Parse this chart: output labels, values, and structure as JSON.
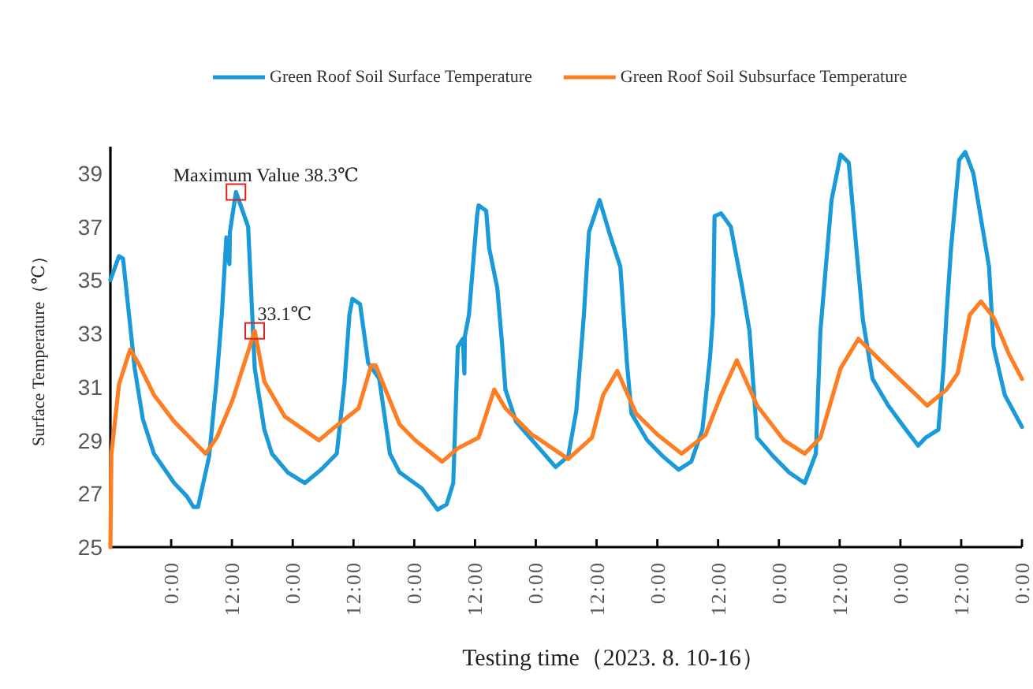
{
  "chart_data": {
    "type": "line",
    "xlabel": "Testing time（2023. 8. 10-16）",
    "ylabel": "Surface Temperature（℃）",
    "legend": "top",
    "xlim": [
      "2023-08-09T12:00",
      "2023-08-17T00:00"
    ],
    "ylim": [
      25,
      40
    ],
    "xticks": [
      {
        "value": "2023-08-10T00:00",
        "label": "0:00"
      },
      {
        "value": "2023-08-10T12:00",
        "label": "12:00"
      },
      {
        "value": "2023-08-11T00:00",
        "label": "0:00"
      },
      {
        "value": "2023-08-11T12:00",
        "label": "12:00"
      },
      {
        "value": "2023-08-12T00:00",
        "label": "0:00"
      },
      {
        "value": "2023-08-12T12:00",
        "label": "12:00"
      },
      {
        "value": "2023-08-13T00:00",
        "label": "0:00"
      },
      {
        "value": "2023-08-13T12:00",
        "label": "12:00"
      },
      {
        "value": "2023-08-14T00:00",
        "label": "0:00"
      },
      {
        "value": "2023-08-14T12:00",
        "label": "12:00"
      },
      {
        "value": "2023-08-15T00:00",
        "label": "0:00"
      },
      {
        "value": "2023-08-15T12:00",
        "label": "12:00"
      },
      {
        "value": "2023-08-16T00:00",
        "label": "0:00"
      },
      {
        "value": "2023-08-16T12:00",
        "label": "12:00"
      },
      {
        "value": "2023-08-17T00:00",
        "label": "0:00"
      }
    ],
    "yticks": [
      25,
      27,
      29,
      31,
      33,
      35,
      37,
      39
    ],
    "series": [
      {
        "name": "Green Roof Soil Surface Temperature",
        "color": "#1a9ad6",
        "x": [
          "2023-08-09T12:00",
          "2023-08-09T13:42",
          "2023-08-09T14:30",
          "2023-08-09T16:48",
          "2023-08-09T18:24",
          "2023-08-09T20:36",
          "2023-08-10T00:36",
          "2023-08-10T03:06",
          "2023-08-10T04:24",
          "2023-08-10T05:18",
          "2023-08-10T07:30",
          "2023-08-10T09:00",
          "2023-08-10T10:00",
          "2023-08-10T10:54",
          "2023-08-10T11:30",
          "2023-08-10T11:36",
          "2023-08-10T12:48",
          "2023-08-10T15:12",
          "2023-08-10T16:30",
          "2023-08-10T18:24",
          "2023-08-10T19:54",
          "2023-08-10T23:00",
          "2023-08-11T02:24",
          "2023-08-11T05:36",
          "2023-08-11T08:42",
          "2023-08-11T10:12",
          "2023-08-11T11:12",
          "2023-08-11T11:48",
          "2023-08-11T13:18",
          "2023-08-11T14:54",
          "2023-08-11T17:06",
          "2023-08-11T19:12",
          "2023-08-11T21:06",
          "2023-08-12T01:30",
          "2023-08-12T04:36",
          "2023-08-12T06:24",
          "2023-08-12T07:42",
          "2023-08-12T08:36",
          "2023-08-12T09:36",
          "2023-08-12T09:54",
          "2023-08-12T10:00",
          "2023-08-12T10:48",
          "2023-08-12T12:24",
          "2023-08-12T12:42",
          "2023-08-12T14:12",
          "2023-08-12T14:48",
          "2023-08-12T16:24",
          "2023-08-12T17:18",
          "2023-08-12T18:00",
          "2023-08-12T20:06",
          "2023-08-12T23:18",
          "2023-08-13T03:54",
          "2023-08-13T06:24",
          "2023-08-13T08:00",
          "2023-08-13T09:30",
          "2023-08-13T10:30",
          "2023-08-13T12:36",
          "2023-08-13T14:48",
          "2023-08-13T16:42",
          "2023-08-13T18:00",
          "2023-08-13T18:54",
          "2023-08-13T22:00",
          "2023-08-14T01:06",
          "2023-08-14T04:12",
          "2023-08-14T06:42",
          "2023-08-14T08:54",
          "2023-08-14T10:24",
          "2023-08-14T11:00",
          "2023-08-14T11:18",
          "2023-08-14T12:36",
          "2023-08-14T14:30",
          "2023-08-14T16:36",
          "2023-08-14T18:12",
          "2023-08-14T19:42",
          "2023-08-14T22:54",
          "2023-08-15T02:00",
          "2023-08-15T05:06",
          "2023-08-15T07:18",
          "2023-08-15T08:12",
          "2023-08-15T10:24",
          "2023-08-15T12:12",
          "2023-08-15T13:48",
          "2023-08-15T15:18",
          "2023-08-15T16:36",
          "2023-08-15T18:30",
          "2023-08-15T21:36",
          "2023-08-16T00:42",
          "2023-08-16T03:30",
          "2023-08-16T05:00",
          "2023-08-16T07:30",
          "2023-08-16T08:30",
          "2023-08-16T09:06",
          "2023-08-16T10:00",
          "2023-08-16T11:36",
          "2023-08-16T12:48",
          "2023-08-16T14:24",
          "2023-08-16T17:30",
          "2023-08-16T18:24",
          "2023-08-16T20:36",
          "2023-08-17T00:00"
        ],
        "values": [
          35.0,
          35.9,
          35.8,
          31.7,
          29.8,
          28.5,
          27.4,
          26.9,
          26.5,
          26.5,
          28.4,
          31.3,
          33.7,
          36.6,
          35.6,
          36.8,
          38.3,
          37.0,
          31.7,
          29.4,
          28.5,
          27.8,
          27.4,
          27.9,
          28.5,
          31.1,
          33.7,
          34.3,
          34.1,
          31.9,
          31.3,
          28.5,
          27.8,
          27.2,
          26.4,
          26.6,
          27.4,
          32.5,
          32.8,
          31.5,
          32.9,
          33.7,
          37.4,
          37.8,
          37.6,
          36.2,
          34.7,
          32.7,
          30.9,
          29.7,
          29.0,
          28.0,
          28.4,
          30.1,
          33.7,
          36.8,
          38.0,
          36.6,
          35.5,
          31.9,
          30.0,
          29.0,
          28.4,
          27.9,
          28.2,
          29.4,
          32.1,
          33.7,
          37.4,
          37.5,
          37.0,
          34.9,
          33.1,
          29.1,
          28.4,
          27.8,
          27.4,
          28.5,
          33.1,
          38.0,
          39.7,
          39.4,
          36.2,
          33.5,
          31.3,
          30.3,
          29.5,
          28.8,
          29.1,
          29.4,
          31.7,
          33.7,
          36.2,
          39.5,
          39.8,
          39.0,
          35.5,
          32.5,
          30.7,
          29.5
        ]
      },
      {
        "name": "Green Roof Soil Subsurface Temperature",
        "color": "#fd7e23",
        "x": [
          "2023-08-09T12:00",
          "2023-08-09T12:12",
          "2023-08-09T13:42",
          "2023-08-09T15:54",
          "2023-08-09T17:30",
          "2023-08-09T20:36",
          "2023-08-10T00:36",
          "2023-08-10T06:48",
          "2023-08-10T09:00",
          "2023-08-10T12:06",
          "2023-08-10T16:30",
          "2023-08-10T18:24",
          "2023-08-10T22:24",
          "2023-08-11T05:12",
          "2023-08-11T07:42",
          "2023-08-11T13:00",
          "2023-08-11T15:30",
          "2023-08-11T16:24",
          "2023-08-11T21:06",
          "2023-08-12T00:12",
          "2023-08-12T05:30",
          "2023-08-12T08:36",
          "2023-08-12T12:42",
          "2023-08-12T15:48",
          "2023-08-12T18:00",
          "2023-08-12T23:18",
          "2023-08-13T00:12",
          "2023-08-13T06:24",
          "2023-08-13T11:06",
          "2023-08-13T13:18",
          "2023-08-13T16:06",
          "2023-08-13T19:48",
          "2023-08-14T00:06",
          "2023-08-14T04:48",
          "2023-08-14T09:30",
          "2023-08-14T12:36",
          "2023-08-14T15:42",
          "2023-08-14T19:42",
          "2023-08-15T01:00",
          "2023-08-15T05:06",
          "2023-08-15T08:12",
          "2023-08-15T12:12",
          "2023-08-15T15:42",
          "2023-08-15T21:36",
          "2023-08-16T05:18",
          "2023-08-16T09:06",
          "2023-08-16T11:18",
          "2023-08-16T13:42",
          "2023-08-16T15:54",
          "2023-08-16T18:24",
          "2023-08-16T21:30",
          "2023-08-17T00:00"
        ],
        "values": [
          25.0,
          28.5,
          31.1,
          32.4,
          31.9,
          30.7,
          29.7,
          28.5,
          29.1,
          30.5,
          33.1,
          31.2,
          29.9,
          29.0,
          29.4,
          30.2,
          31.8,
          31.8,
          29.6,
          29.0,
          28.2,
          28.7,
          29.1,
          30.9,
          30.2,
          29.2,
          29.1,
          28.3,
          29.1,
          30.7,
          31.6,
          30.0,
          29.2,
          28.5,
          29.2,
          30.7,
          32.0,
          30.3,
          29.0,
          28.5,
          29.1,
          31.7,
          32.8,
          31.7,
          30.3,
          30.9,
          31.5,
          33.7,
          34.2,
          33.6,
          32.2,
          31.3
        ]
      }
    ],
    "annotations": [
      {
        "text": "Maximum Value  38.3℃",
        "x": "2023-08-10T12:48",
        "y": 38.3
      },
      {
        "text": "33.1℃",
        "x": "2023-08-10T16:30",
        "y": 33.1
      }
    ]
  }
}
